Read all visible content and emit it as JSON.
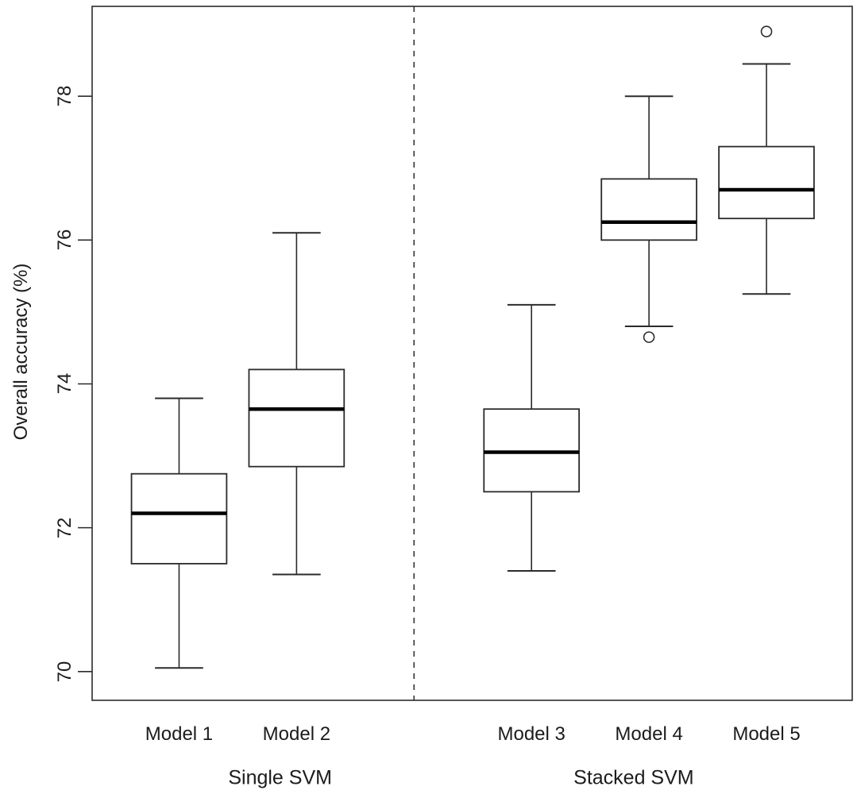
{
  "figure": {
    "background": "#ffffff",
    "line_color": "#2b2b2b",
    "median_color": "#000000",
    "box_fill": "#ffffff"
  },
  "chart_data": {
    "type": "boxplot",
    "title": "",
    "xlabel": "",
    "ylabel": "Overall accuracy (%)",
    "yticks": [
      70,
      72,
      74,
      76,
      78
    ],
    "ylim": [
      69.6,
      79.25
    ],
    "xlim": [
      0.26,
      6.73
    ],
    "grid": false,
    "divider_x": 3,
    "divider_style": "dashed",
    "box_width": 0.81,
    "cap_width": 0.41,
    "groups": [
      {
        "label": "Single SVM",
        "x": 1.86
      },
      {
        "label": "Stacked SVM",
        "x": 4.87
      }
    ],
    "series": [
      {
        "label": "Model 1",
        "x": 1,
        "group": "Single SVM",
        "whisker_low": 70.05,
        "q1": 71.5,
        "median": 72.2,
        "q3": 72.75,
        "whisker_high": 73.8,
        "outliers": []
      },
      {
        "label": "Model 2",
        "x": 2,
        "group": "Single SVM",
        "whisker_low": 71.35,
        "q1": 72.85,
        "median": 73.65,
        "q3": 74.2,
        "whisker_high": 76.1,
        "outliers": []
      },
      {
        "label": "Model 3",
        "x": 4,
        "group": "Stacked SVM",
        "whisker_low": 71.4,
        "q1": 72.5,
        "median": 73.05,
        "q3": 73.65,
        "whisker_high": 75.1,
        "outliers": []
      },
      {
        "label": "Model 4",
        "x": 5,
        "group": "Stacked SVM",
        "whisker_low": 74.8,
        "q1": 76.0,
        "median": 76.25,
        "q3": 76.85,
        "whisker_high": 78.0,
        "outliers": [
          74.65
        ]
      },
      {
        "label": "Model 5",
        "x": 6,
        "group": "Stacked SVM",
        "whisker_low": 75.25,
        "q1": 76.3,
        "median": 76.7,
        "q3": 77.3,
        "whisker_high": 78.45,
        "outliers": [
          78.9
        ]
      }
    ]
  }
}
